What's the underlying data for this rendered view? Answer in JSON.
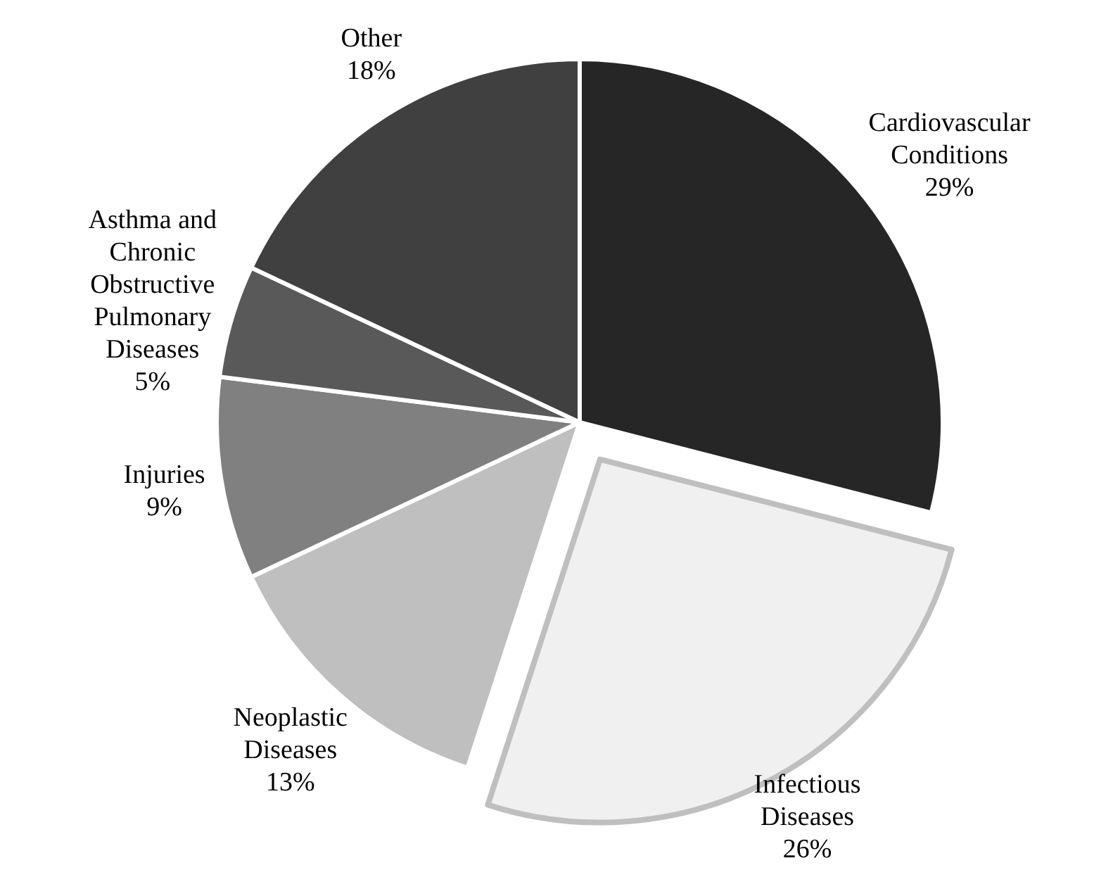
{
  "chart_data": {
    "type": "pie",
    "categories": [
      "Cardiovascular Conditions",
      "Infectious Diseases",
      "Neoplastic Diseases",
      "Injuries",
      "Asthma and Chronic Obstructive Pulmonary Diseases",
      "Other"
    ],
    "values": [
      29,
      26,
      13,
      9,
      5,
      18
    ],
    "colors": [
      "#262626",
      "#f0f0f0",
      "#bfbfbf",
      "#808080",
      "#595959",
      "#404040"
    ],
    "value_labels": [
      "29%",
      "26%",
      "13%",
      "9%",
      "5%",
      "18%"
    ]
  }
}
